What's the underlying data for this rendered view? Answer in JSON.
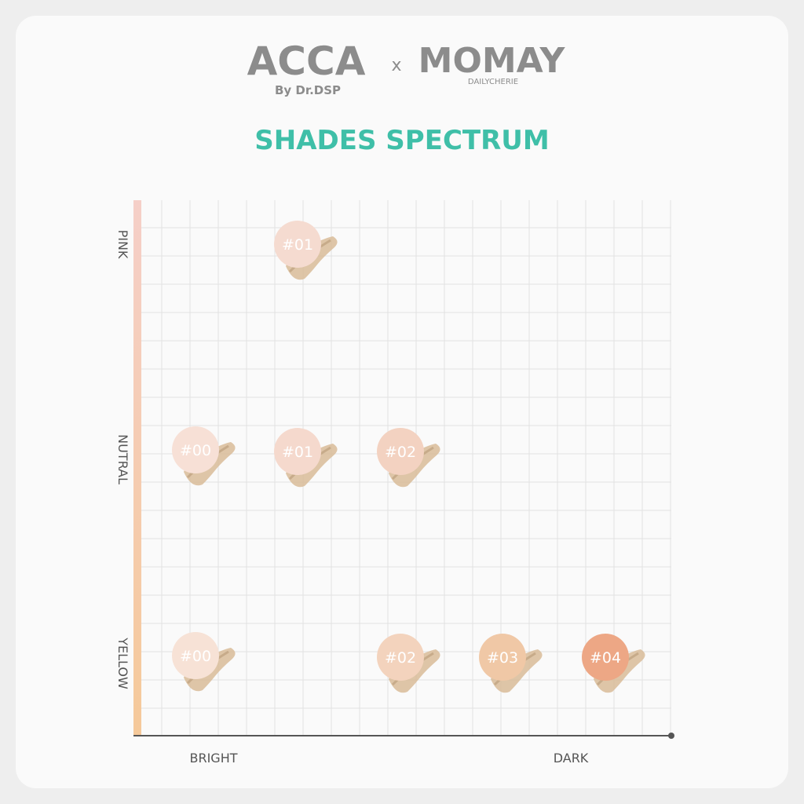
{
  "header": {
    "brand_left": "ACCA",
    "brand_left_sub": "By Dr.DSP",
    "separator": "x",
    "brand_right": "MOMAY",
    "brand_right_sub": "DAILYCHERIE"
  },
  "title": "SHADES SPECTRUM",
  "axis": {
    "y_labels": [
      "PINK",
      "NUTRAL",
      "YELLOW"
    ],
    "x_labels": [
      "BRIGHT",
      "DARK"
    ]
  },
  "shades": [
    {
      "label": "#01",
      "color": "#f5dbd0"
    },
    {
      "label": "#00",
      "color": "#f7e0d6"
    },
    {
      "label": "#01",
      "color": "#f5d9cd"
    },
    {
      "label": "#02",
      "color": "#f3d2c1"
    },
    {
      "label": "#00",
      "color": "#f7e2d6"
    },
    {
      "label": "#02",
      "color": "#f3d3bd"
    },
    {
      "label": "#03",
      "color": "#f0c8a6"
    },
    {
      "label": "#04",
      "color": "#eda785"
    }
  ]
}
